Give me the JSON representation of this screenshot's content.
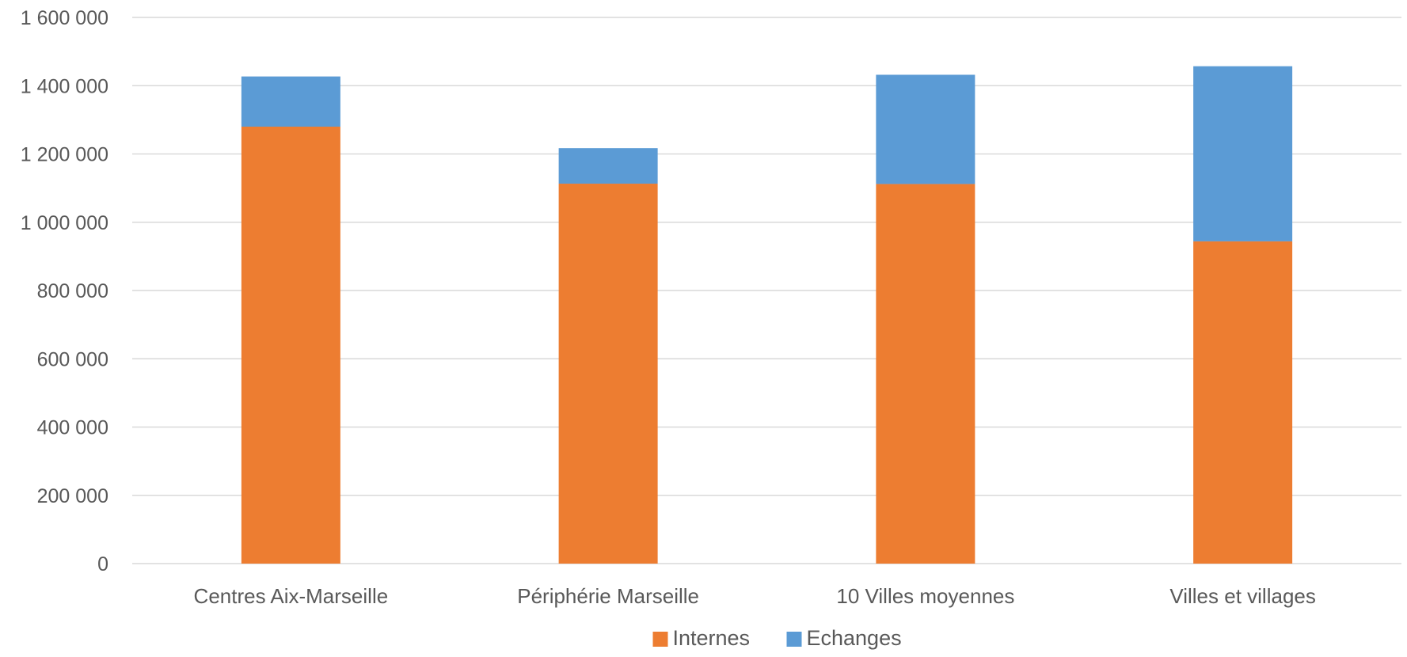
{
  "chart_data": {
    "type": "bar",
    "stacked": true,
    "categories": [
      "Centres Aix-Marseille",
      "Périphérie Marseille",
      "10  Villes moyennes",
      "Villes et villages"
    ],
    "series": [
      {
        "name": "Internes",
        "color": "#ED7D31",
        "values": [
          1280000,
          1113000,
          1112000,
          944000
        ]
      },
      {
        "name": "Echanges",
        "color": "#5B9BD5",
        "values": [
          147000,
          104000,
          320000,
          513000
        ]
      }
    ],
    "ylim": [
      0,
      1600000
    ],
    "yticks": [
      0,
      200000,
      400000,
      600000,
      800000,
      1000000,
      1200000,
      1400000,
      1600000
    ],
    "ytick_labels": [
      "0",
      "200 000",
      "400 000",
      "600 000",
      "800 000",
      "1 000 000",
      "1 200 000",
      "1 400 000",
      "1 600 000"
    ],
    "grid": true,
    "legend": "bottom-center",
    "title": "",
    "xlabel": "",
    "ylabel": ""
  }
}
